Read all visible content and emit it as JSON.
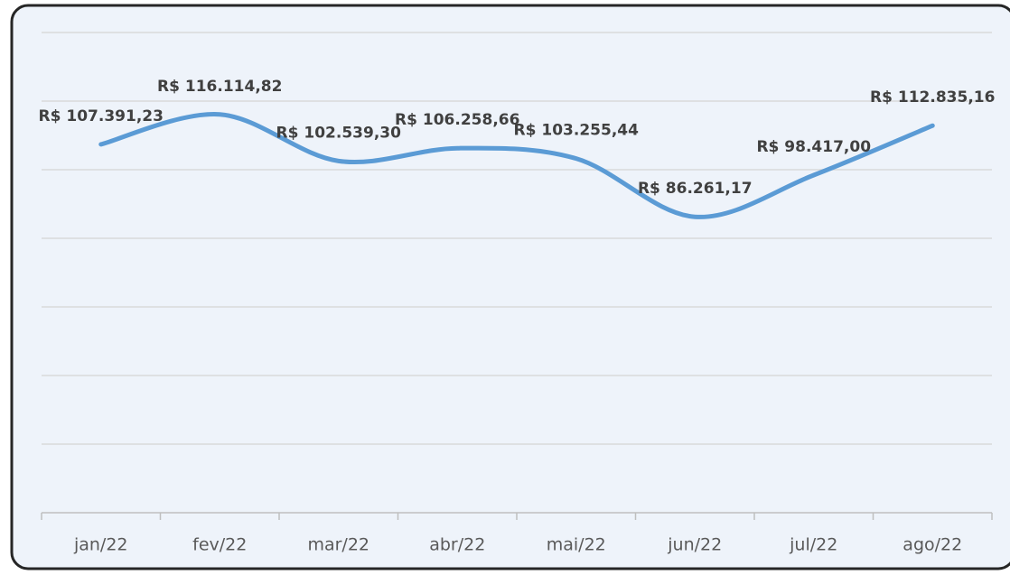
{
  "chart_data": {
    "type": "line",
    "categories": [
      "jan/22",
      "fev/22",
      "mar/22",
      "abr/22",
      "mai/22",
      "jun/22",
      "jul/22",
      "ago/22"
    ],
    "values": [
      107391.23,
      116114.82,
      102539.3,
      106258.66,
      103255.44,
      86261.17,
      98417.0,
      112835.16
    ],
    "value_labels": [
      "R$ 107.391,23",
      "R$ 116.114,82",
      "R$ 102.539,30",
      "R$ 106.258,66",
      "R$ 103.255,44",
      "R$ 86.261,17",
      "R$ 98.417,00",
      "R$ 112.835,16"
    ],
    "color": "#5b9bd5",
    "ylim": [
      0,
      140000
    ],
    "yticks": [
      0,
      20000,
      40000,
      60000,
      80000,
      100000,
      120000,
      140000
    ],
    "grid": true,
    "smooth": true
  }
}
